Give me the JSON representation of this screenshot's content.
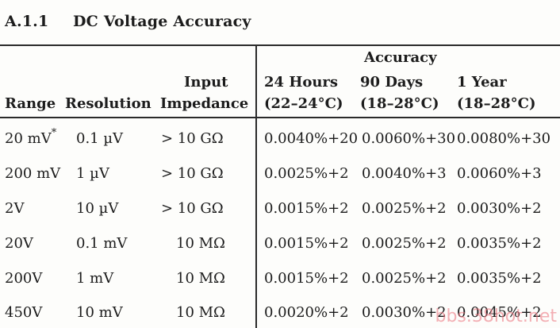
{
  "section": {
    "number": "A.1.1",
    "title": "DC Voltage Accuracy"
  },
  "headers": {
    "range": "Range",
    "resolution": "Resolution",
    "impedance_line1": "Input",
    "impedance_line2": "Impedance",
    "accuracy": "Accuracy",
    "col24_line1": "24 Hours",
    "col24_line2": "(22–24°C)",
    "col90_line1": "90 Days",
    "col90_line2": "(18–28°C)",
    "col1y_line1": "1 Year",
    "col1y_line2": "(18–28°C)"
  },
  "rows": [
    {
      "range": "20 mV",
      "footnote": "*",
      "resolution": "0.1 µV",
      "impedance": "> 10 GΩ",
      "h24": "0.0040%+20",
      "d90": "0.0060%+30",
      "y1": "0.0080%+30"
    },
    {
      "range": "200 mV",
      "footnote": "",
      "resolution": "1 µV",
      "impedance": "> 10 GΩ",
      "h24": "0.0025%+2",
      "d90": "0.0040%+3",
      "y1": "0.0060%+3"
    },
    {
      "range": "2V",
      "footnote": "",
      "resolution": "10 µV",
      "impedance": "> 10 GΩ",
      "h24": "0.0015%+2",
      "d90": "0.0025%+2",
      "y1": "0.0030%+2"
    },
    {
      "range": "20V",
      "footnote": "",
      "resolution": "0.1 mV",
      "impedance": "10 MΩ",
      "h24": "0.0015%+2",
      "d90": "0.0025%+2",
      "y1": "0.0035%+2"
    },
    {
      "range": "200V",
      "footnote": "",
      "resolution": "1 mV",
      "impedance": "10 MΩ",
      "h24": "0.0015%+2",
      "d90": "0.0025%+2",
      "y1": "0.0035%+2"
    },
    {
      "range": "450V",
      "footnote": "",
      "resolution": "10 mV",
      "impedance": "10 MΩ",
      "h24": "0.0020%+2",
      "d90": "0.0030%+2",
      "y1": "0.0045%+2"
    }
  ],
  "watermark": "bbs.38hot.net"
}
